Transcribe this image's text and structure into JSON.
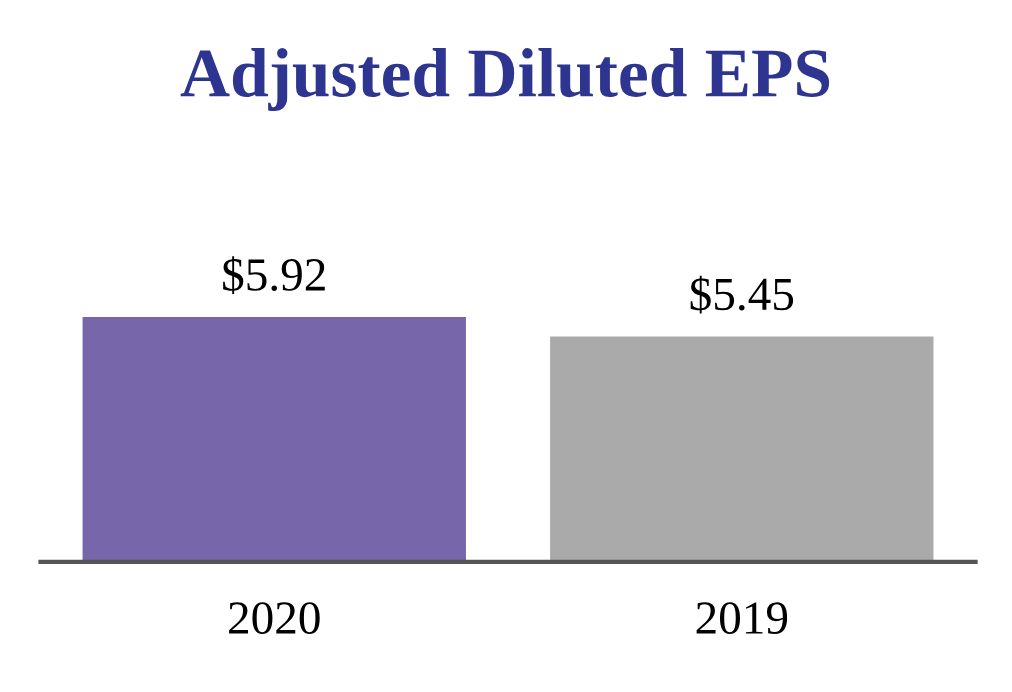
{
  "chart_data": {
    "type": "bar",
    "title": "Adjusted Diluted EPS",
    "categories": [
      "2020",
      "2019"
    ],
    "values": [
      5.92,
      5.45
    ],
    "colors": [
      "#7766aa",
      "#aaaaaa"
    ],
    "value_labels": [
      "$5.92",
      "$5.45"
    ],
    "grid": false,
    "legend": false
  }
}
